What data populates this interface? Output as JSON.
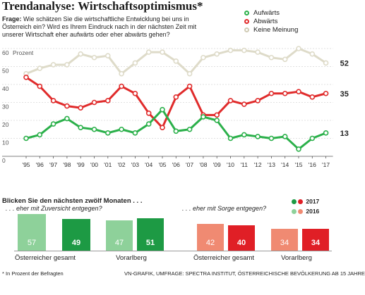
{
  "title": "Trendanalyse: Wirtschaftsoptimismus*",
  "question": {
    "label": "Frage:",
    "text": "Wie schätzen Sie die wirtschaftliche Entwicklung bei uns in Österreich ein? Wird es Ihrem Eindruck nach in der nächsten Zeit mit unserer Wirtschaft eher aufwärts oder eher abwärts gehen?"
  },
  "colors": {
    "aufwaerts": "#2bb04a",
    "abwaerts": "#e02b2b",
    "keine": "#dedbc9",
    "green2017": "#1d9a44",
    "green2016": "#8ed19a",
    "red2017": "#e01f26",
    "red2016": "#f08a72"
  },
  "chart_data": [
    {
      "type": "line",
      "ylabel": "Prozent",
      "ylim": [
        0,
        60
      ],
      "yticks": [
        0,
        10,
        20,
        30,
        40,
        50,
        60
      ],
      "x": [
        "'95",
        "'96",
        "'97",
        "'98",
        "'99",
        "'00",
        "'01",
        "'02",
        "'03",
        "'04",
        "'05",
        "'06",
        "'07",
        "'08",
        "'09",
        "'10",
        "'11",
        "'12",
        "'13",
        "'14",
        "'15",
        "'16",
        "'17"
      ],
      "series": [
        {
          "name": "Aufwärts",
          "color": "#2bb04a",
          "end_label": "13",
          "values": [
            10,
            12,
            18,
            21,
            16,
            15,
            13,
            15,
            13,
            18,
            26,
            14,
            15,
            22,
            20,
            10,
            12,
            11,
            10,
            11,
            4,
            10,
            13
          ]
        },
        {
          "name": "Abwärts",
          "color": "#e02b2b",
          "end_label": "35",
          "values": [
            44,
            39,
            31,
            28,
            27,
            30,
            31,
            39,
            35,
            24,
            16,
            33,
            39,
            23,
            23,
            31,
            29,
            31,
            35,
            35,
            36,
            33,
            35
          ]
        },
        {
          "name": "Keine Meinung",
          "color": "#dedbc9",
          "end_label": "52",
          "values": [
            46,
            49,
            51,
            51,
            57,
            55,
            56,
            46,
            52,
            58,
            58,
            53,
            46,
            55,
            57,
            59,
            59,
            58,
            55,
            54,
            60,
            57,
            52
          ]
        }
      ],
      "legend": "top-right",
      "grid": true
    },
    {
      "type": "bar",
      "title": "Blicken Sie den nächsten zwölf Monaten . . .",
      "groups": [
        {
          "subtitle": ". . . eher mit Zuversicht entgegen?",
          "categories": [
            "Österreicher gesamt",
            "Vorarlberg"
          ],
          "series": [
            {
              "name": "2016",
              "values": [
                57,
                47
              ]
            },
            {
              "name": "2017",
              "values": [
                49,
                51
              ]
            }
          ]
        },
        {
          "subtitle": ". . . eher mit Sorge entgegen?",
          "categories": [
            "Österreicher gesamt",
            "Vorarlberg"
          ],
          "series": [
            {
              "name": "2016",
              "values": [
                42,
                34
              ]
            },
            {
              "name": "2017",
              "values": [
                40,
                34
              ]
            }
          ]
        }
      ],
      "legend": [
        "2017",
        "2016"
      ]
    }
  ],
  "footnote": "* In Prozent der Befragten",
  "source": "VN-GRAFIK, UMFRAGE: SPECTRA INSTITUT, ÖSTERREICHISCHE BEVÖLKERUNG AB 15 JAHRE"
}
